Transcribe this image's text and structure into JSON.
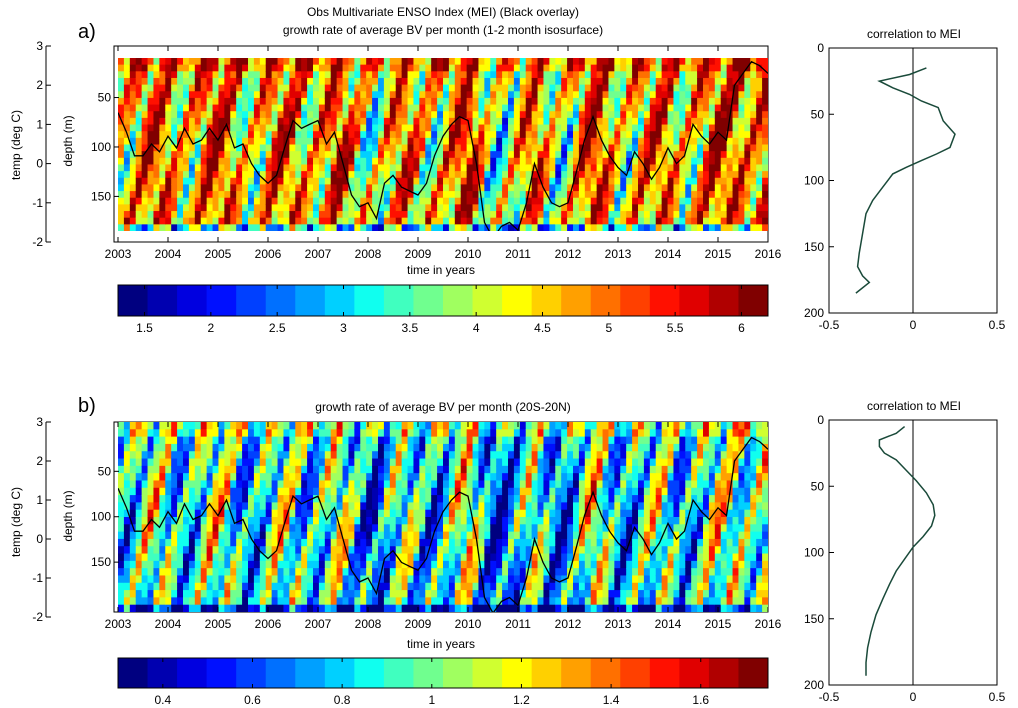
{
  "figure": {
    "top_row_tag": "a)",
    "bottom_row_tag": "b)"
  },
  "palette": [
    "#000080",
    "#0000b0",
    "#0000e0",
    "#0010ff",
    "#0040ff",
    "#0070ff",
    "#00a0ff",
    "#00d0ff",
    "#10ffef",
    "#40ffbf",
    "#70ff8f",
    "#a0ff60",
    "#d0ff30",
    "#ffff00",
    "#ffd000",
    "#ffa000",
    "#ff7000",
    "#ff4000",
    "#ff1000",
    "#e00000",
    "#b00000",
    "#800000"
  ],
  "chart_data": [
    {
      "id": "a-main",
      "type": "heatmap",
      "title_lines": [
        "Obs Multivariate ENSO Index (MEI) (Black overlay)",
        "growth rate of average BV per month (1-2 month isosurface)"
      ],
      "xlabel": "time in years",
      "ylabel_left": "temp (deg C)",
      "ylabel_right": "depth (m)",
      "x_ticks": [
        2003,
        2004,
        2005,
        2006,
        2007,
        2008,
        2009,
        2010,
        2011,
        2012,
        2013,
        2014,
        2015,
        2016
      ],
      "xlim": [
        2003,
        2016
      ],
      "depth_ticks": [
        50,
        100,
        150
      ],
      "depth_range": [
        10,
        185
      ],
      "temp_ticks": [
        -2,
        -1,
        0,
        1,
        2,
        3
      ],
      "temp_lim": [
        -2,
        3
      ],
      "colorbar_ticks": [
        1.5,
        2,
        2.5,
        3,
        3.5,
        4,
        4.5,
        5,
        5.5,
        6
      ],
      "colorbar_range": [
        1.3,
        6.2
      ],
      "field_level": 0.68,
      "mei_overlay": {
        "series": "MEI",
        "x": [
          2003.0,
          2003.17,
          2003.33,
          2003.5,
          2003.67,
          2003.83,
          2004.0,
          2004.17,
          2004.33,
          2004.5,
          2004.67,
          2004.83,
          2005.0,
          2005.17,
          2005.33,
          2005.5,
          2005.67,
          2005.83,
          2006.0,
          2006.17,
          2006.33,
          2006.5,
          2006.67,
          2006.83,
          2007.0,
          2007.17,
          2007.33,
          2007.5,
          2007.67,
          2007.83,
          2008.0,
          2008.17,
          2008.33,
          2008.5,
          2008.67,
          2008.83,
          2009.0,
          2009.17,
          2009.33,
          2009.5,
          2009.67,
          2009.83,
          2010.0,
          2010.17,
          2010.33,
          2010.5,
          2010.67,
          2010.83,
          2011.0,
          2011.17,
          2011.33,
          2011.5,
          2011.67,
          2011.83,
          2012.0,
          2012.17,
          2012.33,
          2012.5,
          2012.67,
          2012.83,
          2013.0,
          2013.17,
          2013.33,
          2013.5,
          2013.67,
          2013.83,
          2014.0,
          2014.17,
          2014.33,
          2014.5,
          2014.67,
          2014.83,
          2015.0,
          2015.17,
          2015.33,
          2015.5,
          2015.67,
          2015.83,
          2016.0
        ],
        "y": [
          1.3,
          0.8,
          0.2,
          0.2,
          0.5,
          0.3,
          0.7,
          0.4,
          0.9,
          0.5,
          0.6,
          0.9,
          0.6,
          1.0,
          0.4,
          0.5,
          0.0,
          -0.3,
          -0.5,
          -0.3,
          0.4,
          1.1,
          0.9,
          1.0,
          1.1,
          0.5,
          0.8,
          0.0,
          -0.8,
          -1.1,
          -1.0,
          -1.4,
          -0.5,
          -0.3,
          -0.6,
          -0.7,
          -0.8,
          -0.5,
          0.2,
          0.7,
          1.0,
          1.2,
          1.1,
          0.0,
          -1.5,
          -1.9,
          -1.6,
          -1.5,
          -1.7,
          -1.0,
          0.0,
          -0.6,
          -1.0,
          -1.1,
          -1.0,
          -0.2,
          0.6,
          1.2,
          0.6,
          0.2,
          -0.1,
          -0.3,
          0.3,
          0.0,
          -0.4,
          -0.1,
          0.4,
          0.0,
          0.2,
          1.0,
          0.7,
          0.5,
          0.8,
          0.6,
          2.0,
          2.3,
          2.6,
          2.5,
          2.3
        ]
      }
    },
    {
      "id": "a-corr",
      "type": "line",
      "title": "correlation to MEI",
      "x_ticks": [
        -0.5,
        0,
        0.5
      ],
      "xlim": [
        -0.5,
        0.5
      ],
      "y_ticks": [
        0,
        50,
        100,
        150,
        200
      ],
      "ylim": [
        0,
        200
      ],
      "y_reversed": true,
      "series": [
        {
          "x": [
            0.08,
            -0.02,
            -0.2,
            -0.12,
            -0.02,
            0.05,
            0.15,
            0.18,
            0.25,
            0.22,
            0.14,
            0.05,
            -0.04,
            -0.12,
            -0.18,
            -0.24,
            -0.28,
            -0.3,
            -0.32,
            -0.33,
            -0.3,
            -0.26,
            -0.34
          ],
          "y": [
            15,
            20,
            25,
            30,
            35,
            40,
            45,
            55,
            65,
            75,
            80,
            85,
            90,
            95,
            105,
            115,
            125,
            140,
            155,
            165,
            172,
            177,
            185
          ]
        }
      ]
    },
    {
      "id": "b-main",
      "type": "heatmap",
      "title_lines": [
        "growth rate of average BV per month (20S-20N)"
      ],
      "xlabel": "time in years",
      "ylabel_left": "temp (deg C)",
      "ylabel_right": "depth (m)",
      "x_ticks": [
        2003,
        2004,
        2005,
        2006,
        2007,
        2008,
        2009,
        2010,
        2011,
        2012,
        2013,
        2014,
        2015,
        2016
      ],
      "xlim": [
        2003,
        2016
      ],
      "depth_ticks": [
        50,
        100,
        150
      ],
      "depth_range": [
        10,
        195
      ],
      "temp_ticks": [
        -2,
        -1,
        0,
        1,
        2,
        3
      ],
      "temp_lim": [
        -2,
        3
      ],
      "colorbar_ticks": [
        0.4,
        0.6,
        0.8,
        1,
        1.2,
        1.4,
        1.6
      ],
      "colorbar_range": [
        0.3,
        1.75
      ],
      "field_level": 0.4,
      "mei_overlay": {
        "series": "MEI",
        "x": [
          2003.0,
          2003.17,
          2003.33,
          2003.5,
          2003.67,
          2003.83,
          2004.0,
          2004.17,
          2004.33,
          2004.5,
          2004.67,
          2004.83,
          2005.0,
          2005.17,
          2005.33,
          2005.5,
          2005.67,
          2005.83,
          2006.0,
          2006.17,
          2006.33,
          2006.5,
          2006.67,
          2006.83,
          2007.0,
          2007.17,
          2007.33,
          2007.5,
          2007.67,
          2007.83,
          2008.0,
          2008.17,
          2008.33,
          2008.5,
          2008.67,
          2008.83,
          2009.0,
          2009.17,
          2009.33,
          2009.5,
          2009.67,
          2009.83,
          2010.0,
          2010.17,
          2010.33,
          2010.5,
          2010.67,
          2010.83,
          2011.0,
          2011.17,
          2011.33,
          2011.5,
          2011.67,
          2011.83,
          2012.0,
          2012.17,
          2012.33,
          2012.5,
          2012.67,
          2012.83,
          2013.0,
          2013.17,
          2013.33,
          2013.5,
          2013.67,
          2013.83,
          2014.0,
          2014.17,
          2014.33,
          2014.5,
          2014.67,
          2014.83,
          2015.0,
          2015.17,
          2015.33,
          2015.5,
          2015.67,
          2015.83,
          2016.0
        ],
        "y": [
          1.3,
          0.8,
          0.2,
          0.2,
          0.5,
          0.3,
          0.7,
          0.4,
          0.9,
          0.5,
          0.6,
          0.9,
          0.6,
          1.0,
          0.4,
          0.5,
          0.0,
          -0.3,
          -0.5,
          -0.3,
          0.4,
          1.1,
          0.9,
          1.0,
          1.1,
          0.5,
          0.8,
          0.0,
          -0.8,
          -1.1,
          -1.0,
          -1.4,
          -0.5,
          -0.3,
          -0.6,
          -0.7,
          -0.8,
          -0.5,
          0.2,
          0.7,
          1.0,
          1.2,
          1.1,
          0.0,
          -1.5,
          -1.9,
          -1.6,
          -1.5,
          -1.7,
          -1.0,
          0.0,
          -0.6,
          -1.0,
          -1.1,
          -1.0,
          -0.2,
          0.6,
          1.2,
          0.6,
          0.2,
          -0.1,
          -0.3,
          0.3,
          0.0,
          -0.4,
          -0.1,
          0.4,
          0.0,
          0.2,
          1.0,
          0.7,
          0.5,
          0.8,
          0.6,
          2.0,
          2.3,
          2.6,
          2.5,
          2.3
        ]
      }
    },
    {
      "id": "b-corr",
      "type": "line",
      "title": "correlation to MEI",
      "x_ticks": [
        -0.5,
        0,
        0.5
      ],
      "xlim": [
        -0.5,
        0.5
      ],
      "y_ticks": [
        0,
        50,
        100,
        150,
        200
      ],
      "ylim": [
        0,
        200
      ],
      "y_reversed": true,
      "series": [
        {
          "x": [
            -0.05,
            -0.1,
            -0.2,
            -0.2,
            -0.17,
            -0.1,
            -0.04,
            0.02,
            0.08,
            0.12,
            0.13,
            0.11,
            0.06,
            0.0,
            -0.05,
            -0.1,
            -0.14,
            -0.18,
            -0.22,
            -0.25,
            -0.27,
            -0.28,
            -0.28
          ],
          "y": [
            5,
            10,
            15,
            20,
            25,
            30,
            38,
            46,
            55,
            64,
            72,
            80,
            88,
            96,
            105,
            114,
            124,
            135,
            147,
            160,
            172,
            183,
            193
          ]
        }
      ]
    }
  ]
}
